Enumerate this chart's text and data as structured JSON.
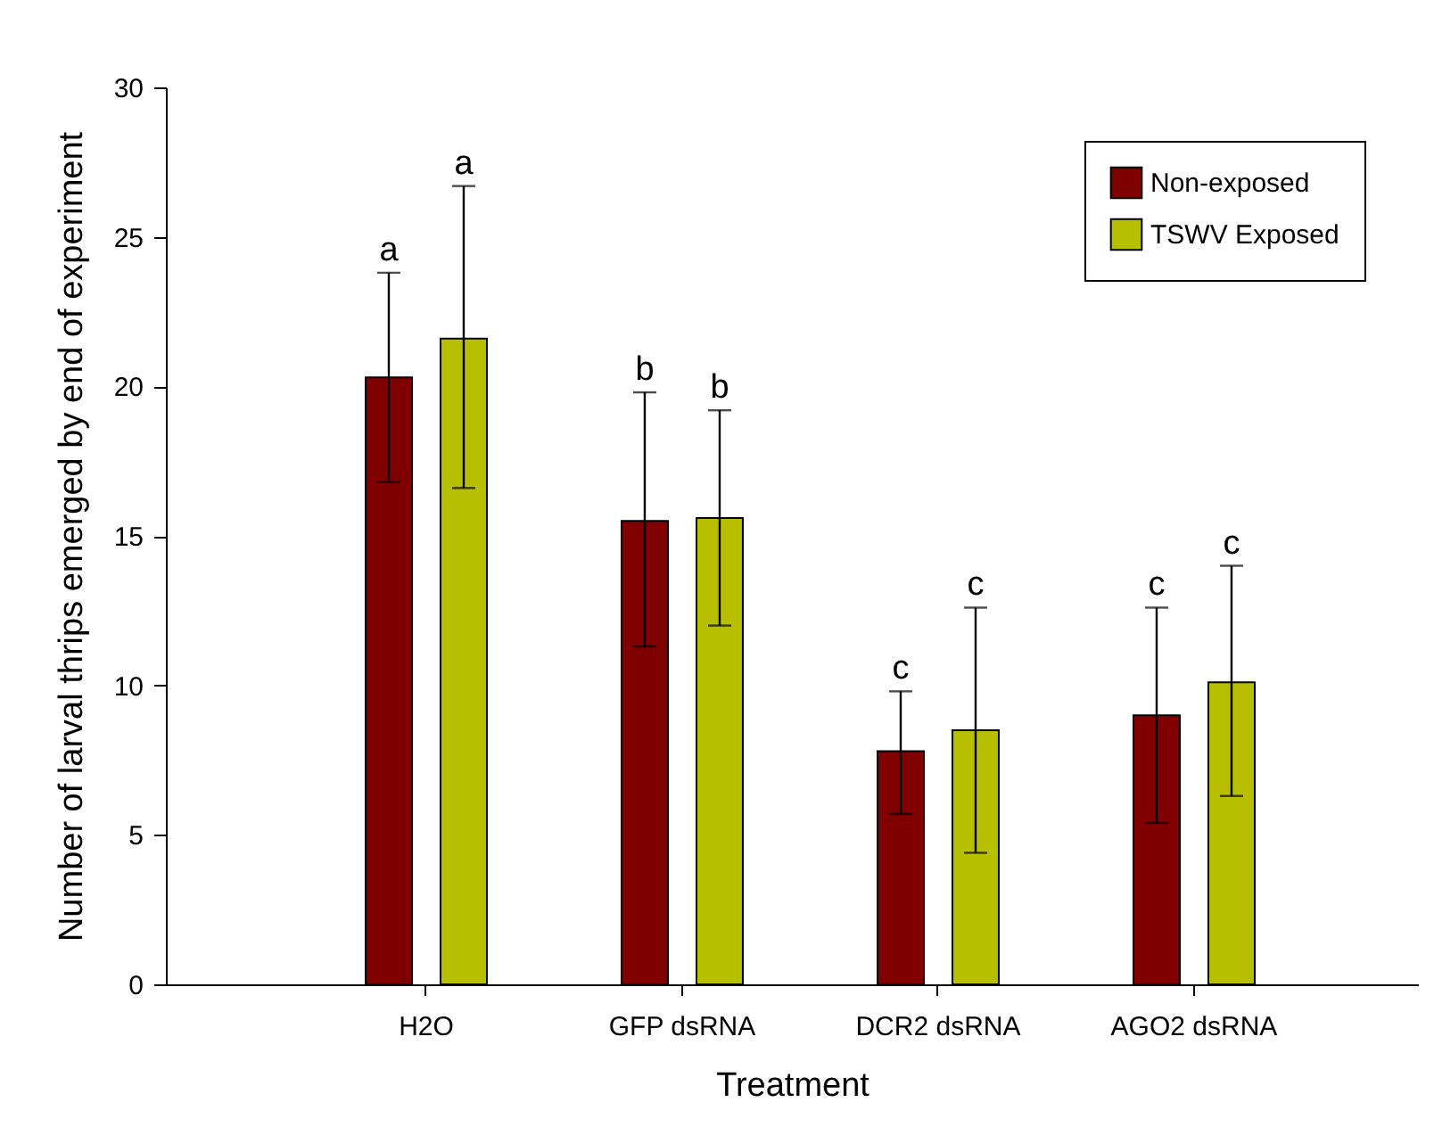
{
  "chart_data": {
    "type": "bar",
    "xlabel": "Treatment",
    "ylabel": "Number of larval thrips emerged by end of experiment",
    "categories": [
      "H2O",
      "GFP dsRNA",
      "DCR2 dsRNA",
      "AGO2 dsRNA"
    ],
    "series": [
      {
        "name": "Non-exposed",
        "color": "#800000",
        "values": [
          20.3,
          15.5,
          7.8,
          9.0
        ],
        "errors": [
          [
            16.8,
            23.8
          ],
          [
            11.3,
            19.8
          ],
          [
            5.7,
            9.8
          ],
          [
            5.4,
            12.6
          ]
        ]
      },
      {
        "name": "TSWV Exposed",
        "color": "#b8bf00",
        "values": [
          21.6,
          15.6,
          8.5,
          10.1
        ],
        "errors": [
          [
            16.6,
            26.7
          ],
          [
            12.0,
            19.2
          ],
          [
            4.4,
            12.6
          ],
          [
            6.3,
            14.0
          ]
        ]
      }
    ],
    "annotations": [
      "a",
      "a",
      "b",
      "b",
      "c",
      "c",
      "c",
      "c"
    ],
    "ylim": [
      0,
      30
    ],
    "yticks": [
      0,
      5,
      10,
      15,
      20,
      25,
      30
    ],
    "grid": false,
    "legend": "top right"
  }
}
